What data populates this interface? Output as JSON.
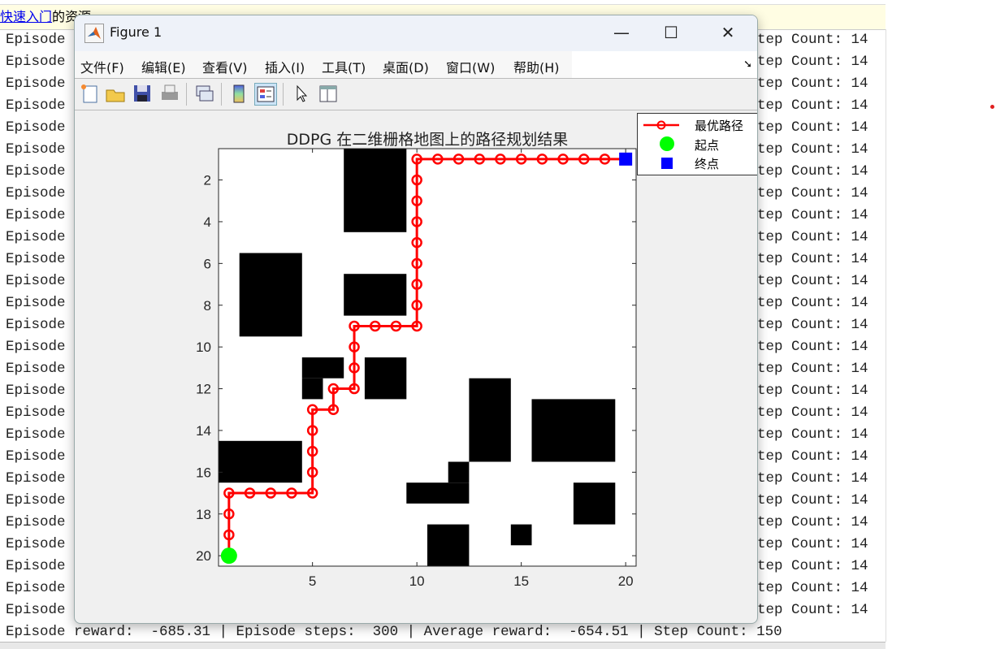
{
  "topbar": {
    "link": "快速入门",
    "text": "的资源"
  },
  "console": {
    "lines": [
      {
        "left": "Episode",
        "right": "tep Count: 14"
      },
      {
        "left": "Episode",
        "right": "tep Count: 14"
      },
      {
        "left": "Episode",
        "right": "tep Count: 14"
      },
      {
        "left": "Episode",
        "right": "tep Count: 14"
      },
      {
        "left": "Episode",
        "right": "tep Count: 14"
      },
      {
        "left": "Episode",
        "right": "tep Count: 14"
      },
      {
        "left": "Episode",
        "right": "tep Count: 14"
      },
      {
        "left": "Episode",
        "right": "tep Count: 14"
      },
      {
        "left": "Episode",
        "right": "tep Count: 14"
      },
      {
        "left": "Episode",
        "right": "tep Count: 14"
      },
      {
        "left": "Episode",
        "right": "tep Count: 14"
      },
      {
        "left": "Episode",
        "right": "tep Count: 14"
      },
      {
        "left": "Episode",
        "right": "tep Count: 14"
      },
      {
        "left": "Episode",
        "right": "tep Count: 14"
      },
      {
        "left": "Episode",
        "right": "tep Count: 14"
      },
      {
        "left": "Episode",
        "right": "tep Count: 14"
      },
      {
        "left": "Episode",
        "right": "tep Count: 14"
      },
      {
        "left": "Episode",
        "right": "tep Count: 14"
      },
      {
        "left": "Episode",
        "right": "tep Count: 14"
      },
      {
        "left": "Episode",
        "right": "tep Count: 14"
      },
      {
        "left": "Episode",
        "right": "tep Count: 14"
      },
      {
        "left": "Episode",
        "right": "tep Count: 14"
      },
      {
        "left": "Episode",
        "right": "tep Count: 14"
      },
      {
        "left": "Episode",
        "right": "tep Count: 14"
      },
      {
        "left": "Episode",
        "right": "tep Count: 14"
      },
      {
        "left": "Episode",
        "right": "tep Count: 14"
      },
      {
        "left": "Episode",
        "right": "tep Count: 14"
      }
    ],
    "last_line": "Episode reward:  -685.31 | Episode steps:  300 | Average reward:  -654.51 | Step Count: 150"
  },
  "figure": {
    "title": "Figure 1",
    "window_buttons": {
      "minimize": "—",
      "maximize": "☐",
      "close": "✕"
    },
    "menus": [
      "文件(F)",
      "编辑(E)",
      "查看(V)",
      "插入(I)",
      "工具(T)",
      "桌面(D)",
      "窗口(W)",
      "帮助(H)"
    ],
    "toolbar_icons": [
      "new-figure-icon",
      "open-icon",
      "save-icon",
      "print-icon",
      "link-plot-icon",
      "colorbar-icon",
      "legend-icon",
      "pointer-icon",
      "property-inspector-icon"
    ]
  },
  "chart_data": {
    "type": "heatmap",
    "title": "DDPG 在二维栅格地图上的路径规划结果",
    "grid_size": [
      20,
      20
    ],
    "xlim": [
      0.5,
      20.5
    ],
    "ylim": [
      0.5,
      20.5
    ],
    "y_reversed": true,
    "xticks": [
      5,
      10,
      15,
      20
    ],
    "yticks": [
      2,
      4,
      6,
      8,
      10,
      12,
      14,
      16,
      18,
      20
    ],
    "obstacle_color": "#000000",
    "free_color": "#ffffff",
    "obstacles": [
      {
        "cols": [
          7,
          9
        ],
        "rows": [
          1,
          4
        ]
      },
      {
        "cols": [
          2,
          4
        ],
        "rows": [
          6,
          9
        ]
      },
      {
        "cols": [
          7,
          9
        ],
        "rows": [
          7,
          8
        ]
      },
      {
        "cols": [
          5,
          6
        ],
        "rows": [
          11,
          11
        ]
      },
      {
        "cols": [
          5,
          5
        ],
        "rows": [
          12,
          12
        ]
      },
      {
        "cols": [
          8,
          9
        ],
        "rows": [
          11,
          12
        ]
      },
      {
        "cols": [
          13,
          14
        ],
        "rows": [
          12,
          15
        ]
      },
      {
        "cols": [
          16,
          19
        ],
        "rows": [
          13,
          15
        ]
      },
      {
        "cols": [
          1,
          4
        ],
        "rows": [
          15,
          16
        ]
      },
      {
        "cols": [
          12,
          12
        ],
        "rows": [
          16,
          16
        ]
      },
      {
        "cols": [
          10,
          12
        ],
        "rows": [
          17,
          17
        ]
      },
      {
        "cols": [
          18,
          19
        ],
        "rows": [
          17,
          18
        ]
      },
      {
        "cols": [
          11,
          12
        ],
        "rows": [
          19,
          20
        ]
      },
      {
        "cols": [
          15,
          15
        ],
        "rows": [
          19,
          19
        ]
      }
    ],
    "series": [
      {
        "name": "最优路径",
        "color": "#ff0000",
        "marker": "circle",
        "x": [
          1,
          1,
          1,
          1,
          2,
          3,
          4,
          5,
          5,
          5,
          5,
          5,
          6,
          6,
          7,
          7,
          7,
          7,
          8,
          9,
          10,
          10,
          10,
          10,
          10,
          10,
          10,
          10,
          10,
          11,
          12,
          13,
          14,
          15,
          16,
          17,
          18,
          19,
          20
        ],
        "y": [
          20,
          19,
          18,
          17,
          17,
          17,
          17,
          17,
          16,
          15,
          14,
          13,
          13,
          12,
          12,
          11,
          10,
          9,
          9,
          9,
          9,
          8,
          7,
          6,
          5,
          4,
          3,
          2,
          1,
          1,
          1,
          1,
          1,
          1,
          1,
          1,
          1,
          1,
          1
        ]
      },
      {
        "name": "起点",
        "color": "#00ff00",
        "marker": "filled-circle",
        "x": [
          1
        ],
        "y": [
          20
        ]
      },
      {
        "name": "终点",
        "color": "#0000ff",
        "marker": "filled-square",
        "x": [
          20
        ],
        "y": [
          1
        ]
      }
    ],
    "legend_position": "top-right-outside"
  }
}
